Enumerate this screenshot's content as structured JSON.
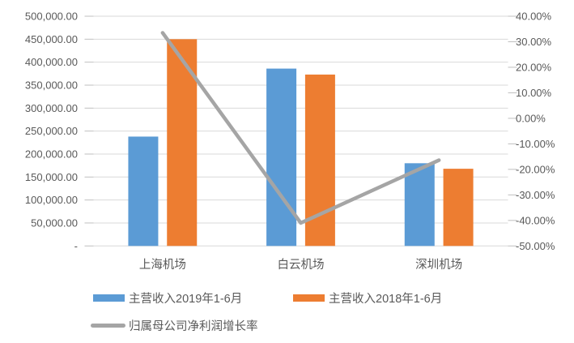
{
  "chart_data": {
    "type": "bar",
    "subtype": "clustered-bar-with-line-combo",
    "title": "",
    "categories": [
      "上海机场",
      "白云机场",
      "深圳机场"
    ],
    "category_keys": [
      "shanghai-airport",
      "baiyun-airport",
      "shenzhen-airport"
    ],
    "series": [
      {
        "key": "revenue-2019-h1",
        "name": "主营收入2019年1-6月",
        "type": "bar",
        "axis": "left",
        "color": "#5B9BD5",
        "values": [
          238000,
          386000,
          180000
        ]
      },
      {
        "key": "revenue-2018-h1",
        "name": "主营收入2018年1-6月",
        "type": "bar",
        "axis": "left",
        "color": "#ED7D31",
        "values": [
          450000,
          373000,
          168000
        ]
      },
      {
        "key": "net-profit-growth",
        "name": "归属母公司净利润增长率",
        "type": "line",
        "axis": "right",
        "color": "#A5A5A5",
        "unit": "%",
        "values": [
          33.5,
          -41.0,
          -16.4
        ]
      }
    ],
    "left_axis": {
      "min": 0,
      "max": 500000,
      "step": 50000,
      "tick_labels": [
        "500,000.00",
        "450,000.00",
        "400,000.00",
        "350,000.00",
        "300,000.00",
        "250,000.00",
        "200,000.00",
        "150,000.00",
        "100,000.00",
        "50,000.00",
        "-"
      ]
    },
    "right_axis": {
      "min": -50,
      "max": 40,
      "step": 10,
      "tick_labels": [
        "40.00%",
        "30.00%",
        "20.00%",
        "10.00%",
        "0.00%",
        "-10.00%",
        "-20.00%",
        "-30.00%",
        "-40.00%",
        "-50.00%"
      ]
    },
    "grid": true,
    "legend_position": "bottom",
    "colors": {
      "grid": "#D9D9D9",
      "tick": "#BFBFBF",
      "axis_text": "#595959",
      "background": "#FFFFFF"
    }
  }
}
